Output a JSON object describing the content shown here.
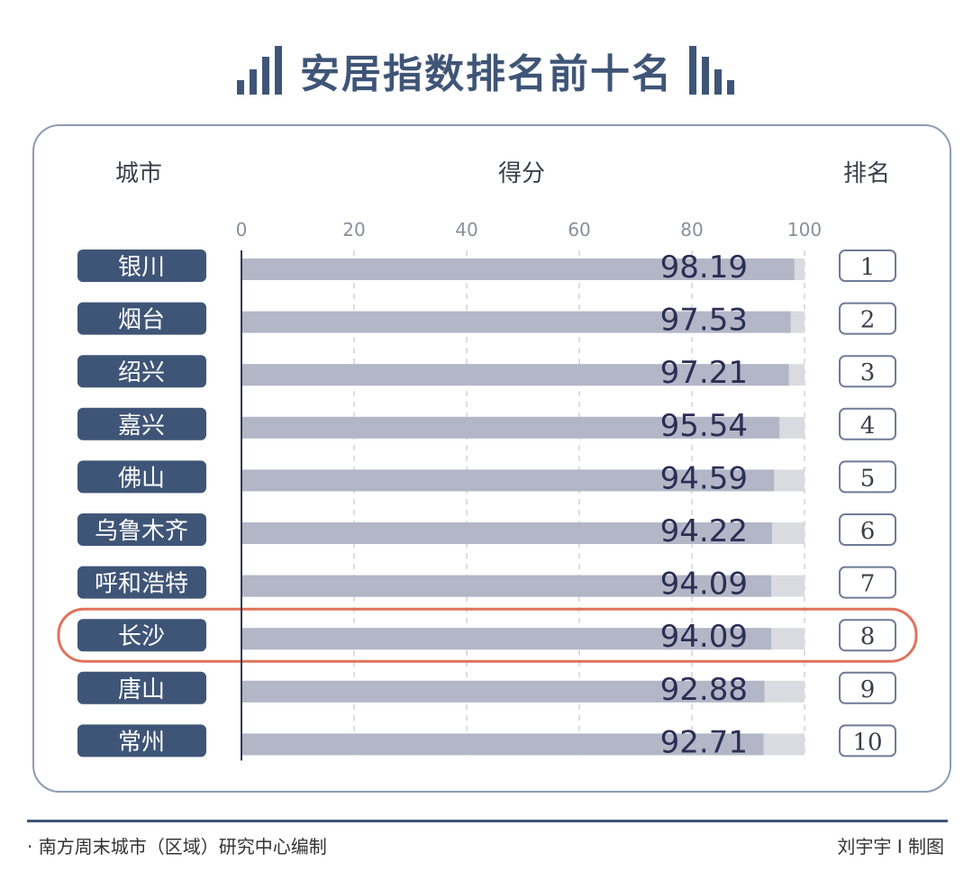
{
  "title": "安居指数排名前十名",
  "headers": {
    "city": "城市",
    "score": "得分",
    "rank": "排名"
  },
  "footer": {
    "source": "· 南方周末城市（区域）研究中心编制",
    "credit": "刘宇宇 I 制图"
  },
  "colors": {
    "navy": "#3f5577",
    "bar": "#b3b6c6",
    "bar_bg": "#dadbe1",
    "highlight": "#e0725a",
    "value_text": "#2b2f55"
  },
  "chart_data": {
    "type": "bar",
    "orientation": "horizontal",
    "title": "安居指数排名前十名",
    "xlabel": "得分",
    "xlim": [
      0,
      100
    ],
    "xticks": [
      0,
      20,
      40,
      60,
      80,
      100
    ],
    "categories": [
      "银川",
      "烟台",
      "绍兴",
      "嘉兴",
      "佛山",
      "乌鲁木齐",
      "呼和浩特",
      "长沙",
      "唐山",
      "常州"
    ],
    "values": [
      98.19,
      97.53,
      97.21,
      95.54,
      94.59,
      94.22,
      94.09,
      94.09,
      92.88,
      92.71
    ],
    "value_labels": [
      "98.19",
      "97.53",
      "97.21",
      "95.54",
      "94.59",
      "94.22",
      "94.09",
      "94.09",
      "92.88",
      "92.71"
    ],
    "ranks": [
      "1",
      "2",
      "3",
      "4",
      "5",
      "6",
      "7",
      "8",
      "9",
      "10"
    ],
    "highlight": "长沙",
    "grid": true
  }
}
